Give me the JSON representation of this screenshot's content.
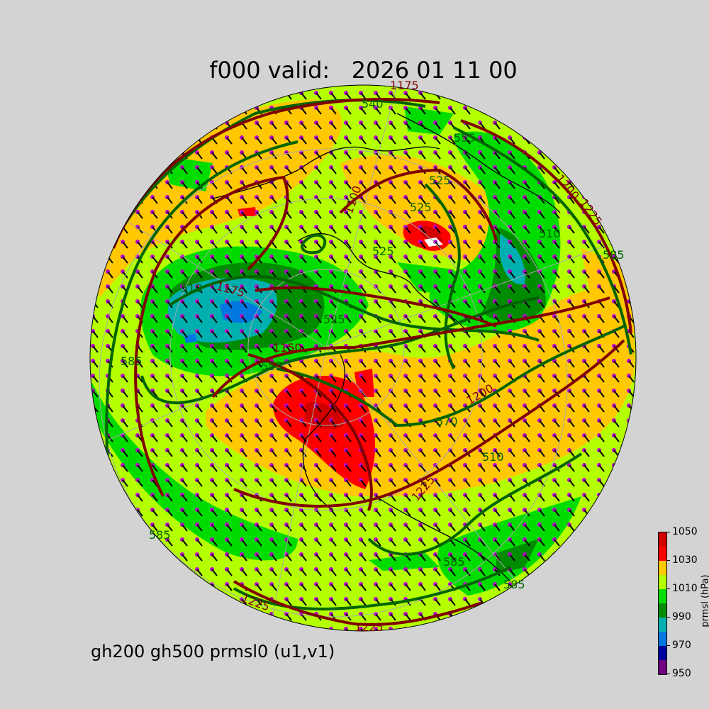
{
  "title": "f000 valid:   2026 01 11 00",
  "subtitle": "gh200 gh500 prmsl0 (u1,v1)",
  "colorbar": {
    "label": "prmsl (hPa)",
    "ticks": [
      "950",
      "970",
      "990",
      "1010",
      "1030",
      "1050"
    ],
    "levels": [
      950,
      960,
      970,
      980,
      990,
      1000,
      1010,
      1020,
      1030,
      1040,
      1050
    ],
    "colors": [
      "#700080",
      "#0000a0",
      "#0078e0",
      "#00b0b0",
      "#008c00",
      "#00dc00",
      "#b4ff00",
      "#ffc800",
      "#ff0000",
      "#d00000"
    ]
  },
  "contour_colors": {
    "gh500": "#006400",
    "gh200": "#800000",
    "wind_dots": "#c000d0",
    "coast": "#000000",
    "grid": "#aaaaaa"
  },
  "contour_labels": {
    "gh500": [
      "540",
      "525",
      "525",
      "525",
      "510",
      "510",
      "525",
      "555",
      "585",
      "570",
      "585",
      "585",
      "585",
      "585",
      "555",
      "510"
    ],
    "gh200": [
      "1175",
      "1100",
      "1200",
      "1225",
      "1175",
      "1150",
      "1200",
      "1225",
      "1225",
      "1225"
    ]
  }
}
